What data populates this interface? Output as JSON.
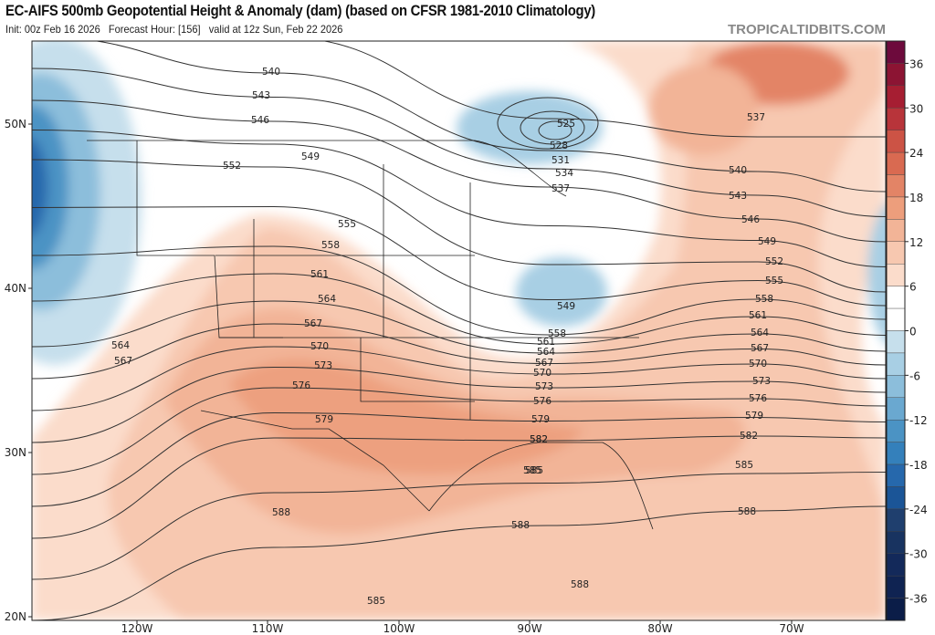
{
  "header": {
    "title": "EC-AIFS 500mb Geopotential Height & Anomaly (dam) (based on CFSR 1981-2010 Climatology)",
    "subtitle": "Init: 00z Feb 16 2026   Forecast Hour: [156]   valid at 12z Sun, Feb 22 2026",
    "brand": "TROPICALTIDBITS.COM"
  },
  "map": {
    "lat_labels": [
      "50N",
      "40N",
      "30N",
      "20N"
    ],
    "lon_labels": [
      "120W",
      "110W",
      "100W",
      "90W",
      "80W",
      "70W"
    ],
    "contour_labels": [
      "540",
      "543",
      "546",
      "549",
      "552",
      "555",
      "558",
      "561",
      "564",
      "567",
      "570",
      "573",
      "576",
      "579",
      "582",
      "585",
      "588",
      "525",
      "528",
      "531",
      "534",
      "537",
      "549",
      "558",
      "561",
      "564",
      "567",
      "570",
      "573",
      "576",
      "579",
      "582",
      "585",
      "564",
      "567",
      "537",
      "540",
      "543",
      "546",
      "549",
      "552",
      "555",
      "558",
      "561",
      "564",
      "567",
      "570",
      "573",
      "576",
      "579",
      "582",
      "585",
      "588",
      "588",
      "588",
      "585"
    ],
    "contour_levels": [
      537,
      540,
      543,
      546,
      549,
      552,
      555,
      558,
      561,
      564,
      567,
      570,
      573,
      576,
      579,
      582,
      585,
      588
    ]
  },
  "colorbar": {
    "ticks": [
      "36",
      "30",
      "24",
      "18",
      "12",
      "6",
      "0",
      "-6",
      "-12",
      "-18",
      "-24",
      "-30",
      "-36"
    ],
    "colors": [
      "#6d0a3c",
      "#8c1433",
      "#a61e32",
      "#b8343a",
      "#cc5345",
      "#d96a51",
      "#e38466",
      "#ed9e7c",
      "#f2b497",
      "#f7c8b0",
      "#fbdccb",
      "#ffffff",
      "#ffffff",
      "#c6dfec",
      "#a8cfe4",
      "#8cbedb",
      "#6aa8d0",
      "#4b93c4",
      "#3480bb",
      "#2668ac",
      "#1b5597",
      "#1f3f6e",
      "#183360",
      "#13295a",
      "#0f2352",
      "#0b1d48"
    ]
  }
}
